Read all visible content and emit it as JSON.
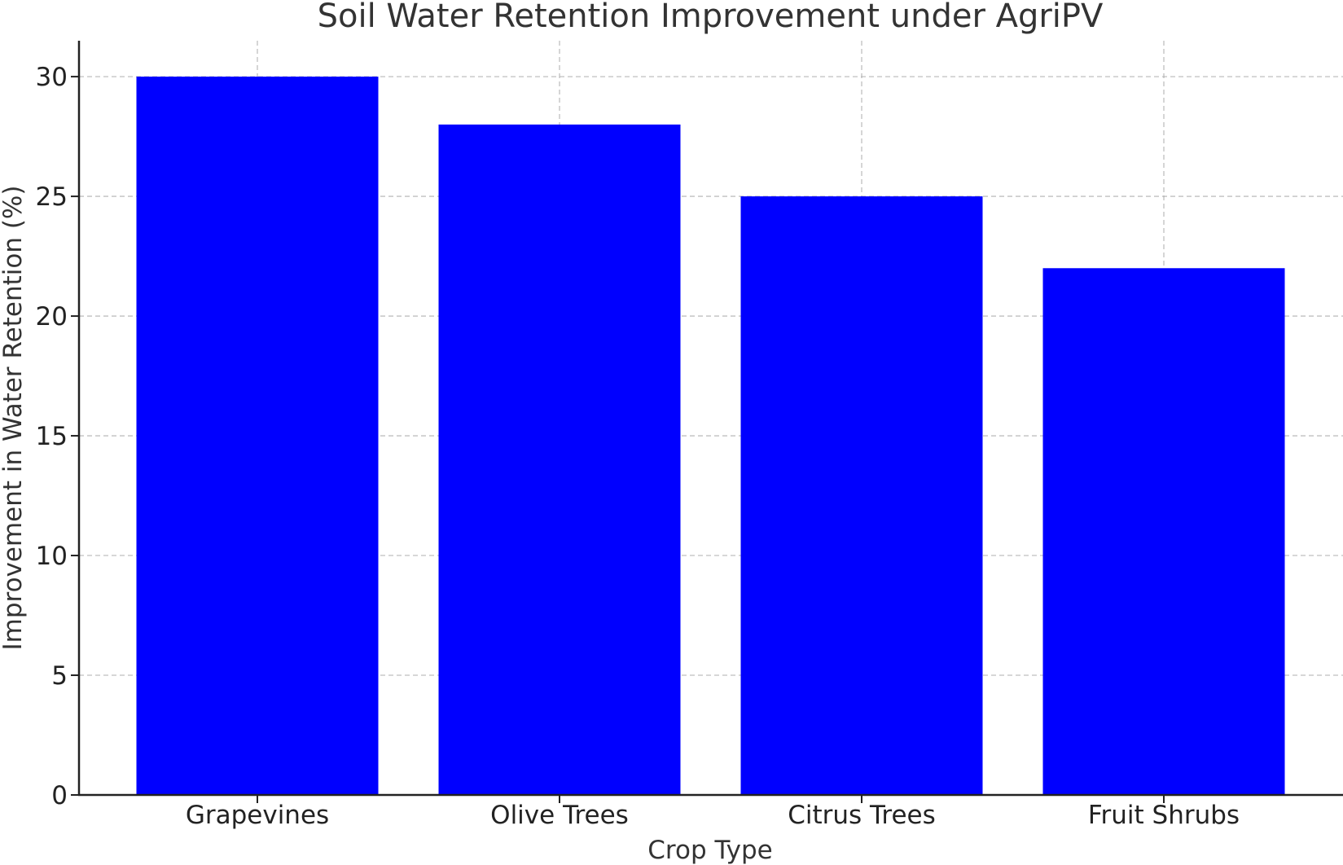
{
  "chart_data": {
    "type": "bar",
    "title": "Soil Water Retention Improvement under AgriPV",
    "xlabel": "Crop Type",
    "ylabel": "Improvement in Water Retention (%)",
    "categories": [
      "Grapevines",
      "Olive Trees",
      "Citrus Trees",
      "Fruit Shrubs"
    ],
    "values": [
      30,
      28,
      25,
      22
    ],
    "ylim": [
      0,
      31.5
    ],
    "yticks": [
      0,
      5,
      10,
      15,
      20,
      25,
      30
    ],
    "bar_color": "#0000ff",
    "grid": true
  }
}
